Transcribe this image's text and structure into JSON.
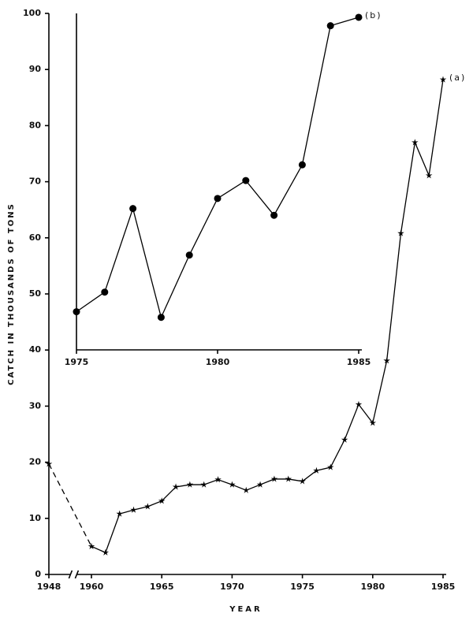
{
  "chart_data": [
    {
      "type": "line",
      "y_label": "CATCH IN THOUSANDS OF TONS",
      "x_label": "YEAR",
      "x": [
        1948,
        1960,
        1961,
        1962,
        1963,
        1964,
        1965,
        1966,
        1967,
        1968,
        1969,
        1970,
        1971,
        1972,
        1973,
        1974,
        1975,
        1976,
        1977,
        1978,
        1979,
        1980,
        1981,
        1982,
        1983,
        1984,
        1985
      ],
      "series": [
        {
          "name": "(a)",
          "color": "#000000",
          "marker": "star",
          "dashed_first_segment": true,
          "values": [
            19.7,
            5.0,
            3.9,
            10.8,
            11.5,
            12.1,
            13.1,
            15.6,
            16.0,
            16.0,
            16.9,
            16.0,
            15.0,
            16.0,
            17.0,
            17.0,
            16.6,
            18.5,
            19.1,
            24.0,
            30.3,
            27.0,
            38.1,
            60.8,
            77.0,
            71.1,
            88.2
          ]
        }
      ],
      "xlim": [
        1948,
        1985
      ],
      "xticks": [
        1948,
        1960,
        1965,
        1970,
        1975,
        1980,
        1985
      ],
      "axis_break": true,
      "ylim": [
        0,
        100
      ],
      "yticks": [
        0,
        10,
        20,
        30,
        40,
        50,
        60,
        70,
        80,
        90,
        100
      ]
    },
    {
      "type": "line",
      "x": [
        1975,
        1976,
        1977,
        1978,
        1979,
        1980,
        1981,
        1982,
        1983,
        1984,
        1985
      ],
      "series": [
        {
          "name": "(b)",
          "color": "#000000",
          "marker": "circle",
          "dashed_first_segment": false,
          "values": [
            46.8,
            50.3,
            65.2,
            45.8,
            56.9,
            67.0,
            70.2,
            64.0,
            73.0,
            97.8,
            99.3
          ]
        }
      ],
      "xlim": [
        1975,
        1985
      ],
      "xticks": [
        1975,
        1980,
        1985
      ],
      "axis_break": false,
      "ylim": [
        40,
        100
      ]
    }
  ]
}
